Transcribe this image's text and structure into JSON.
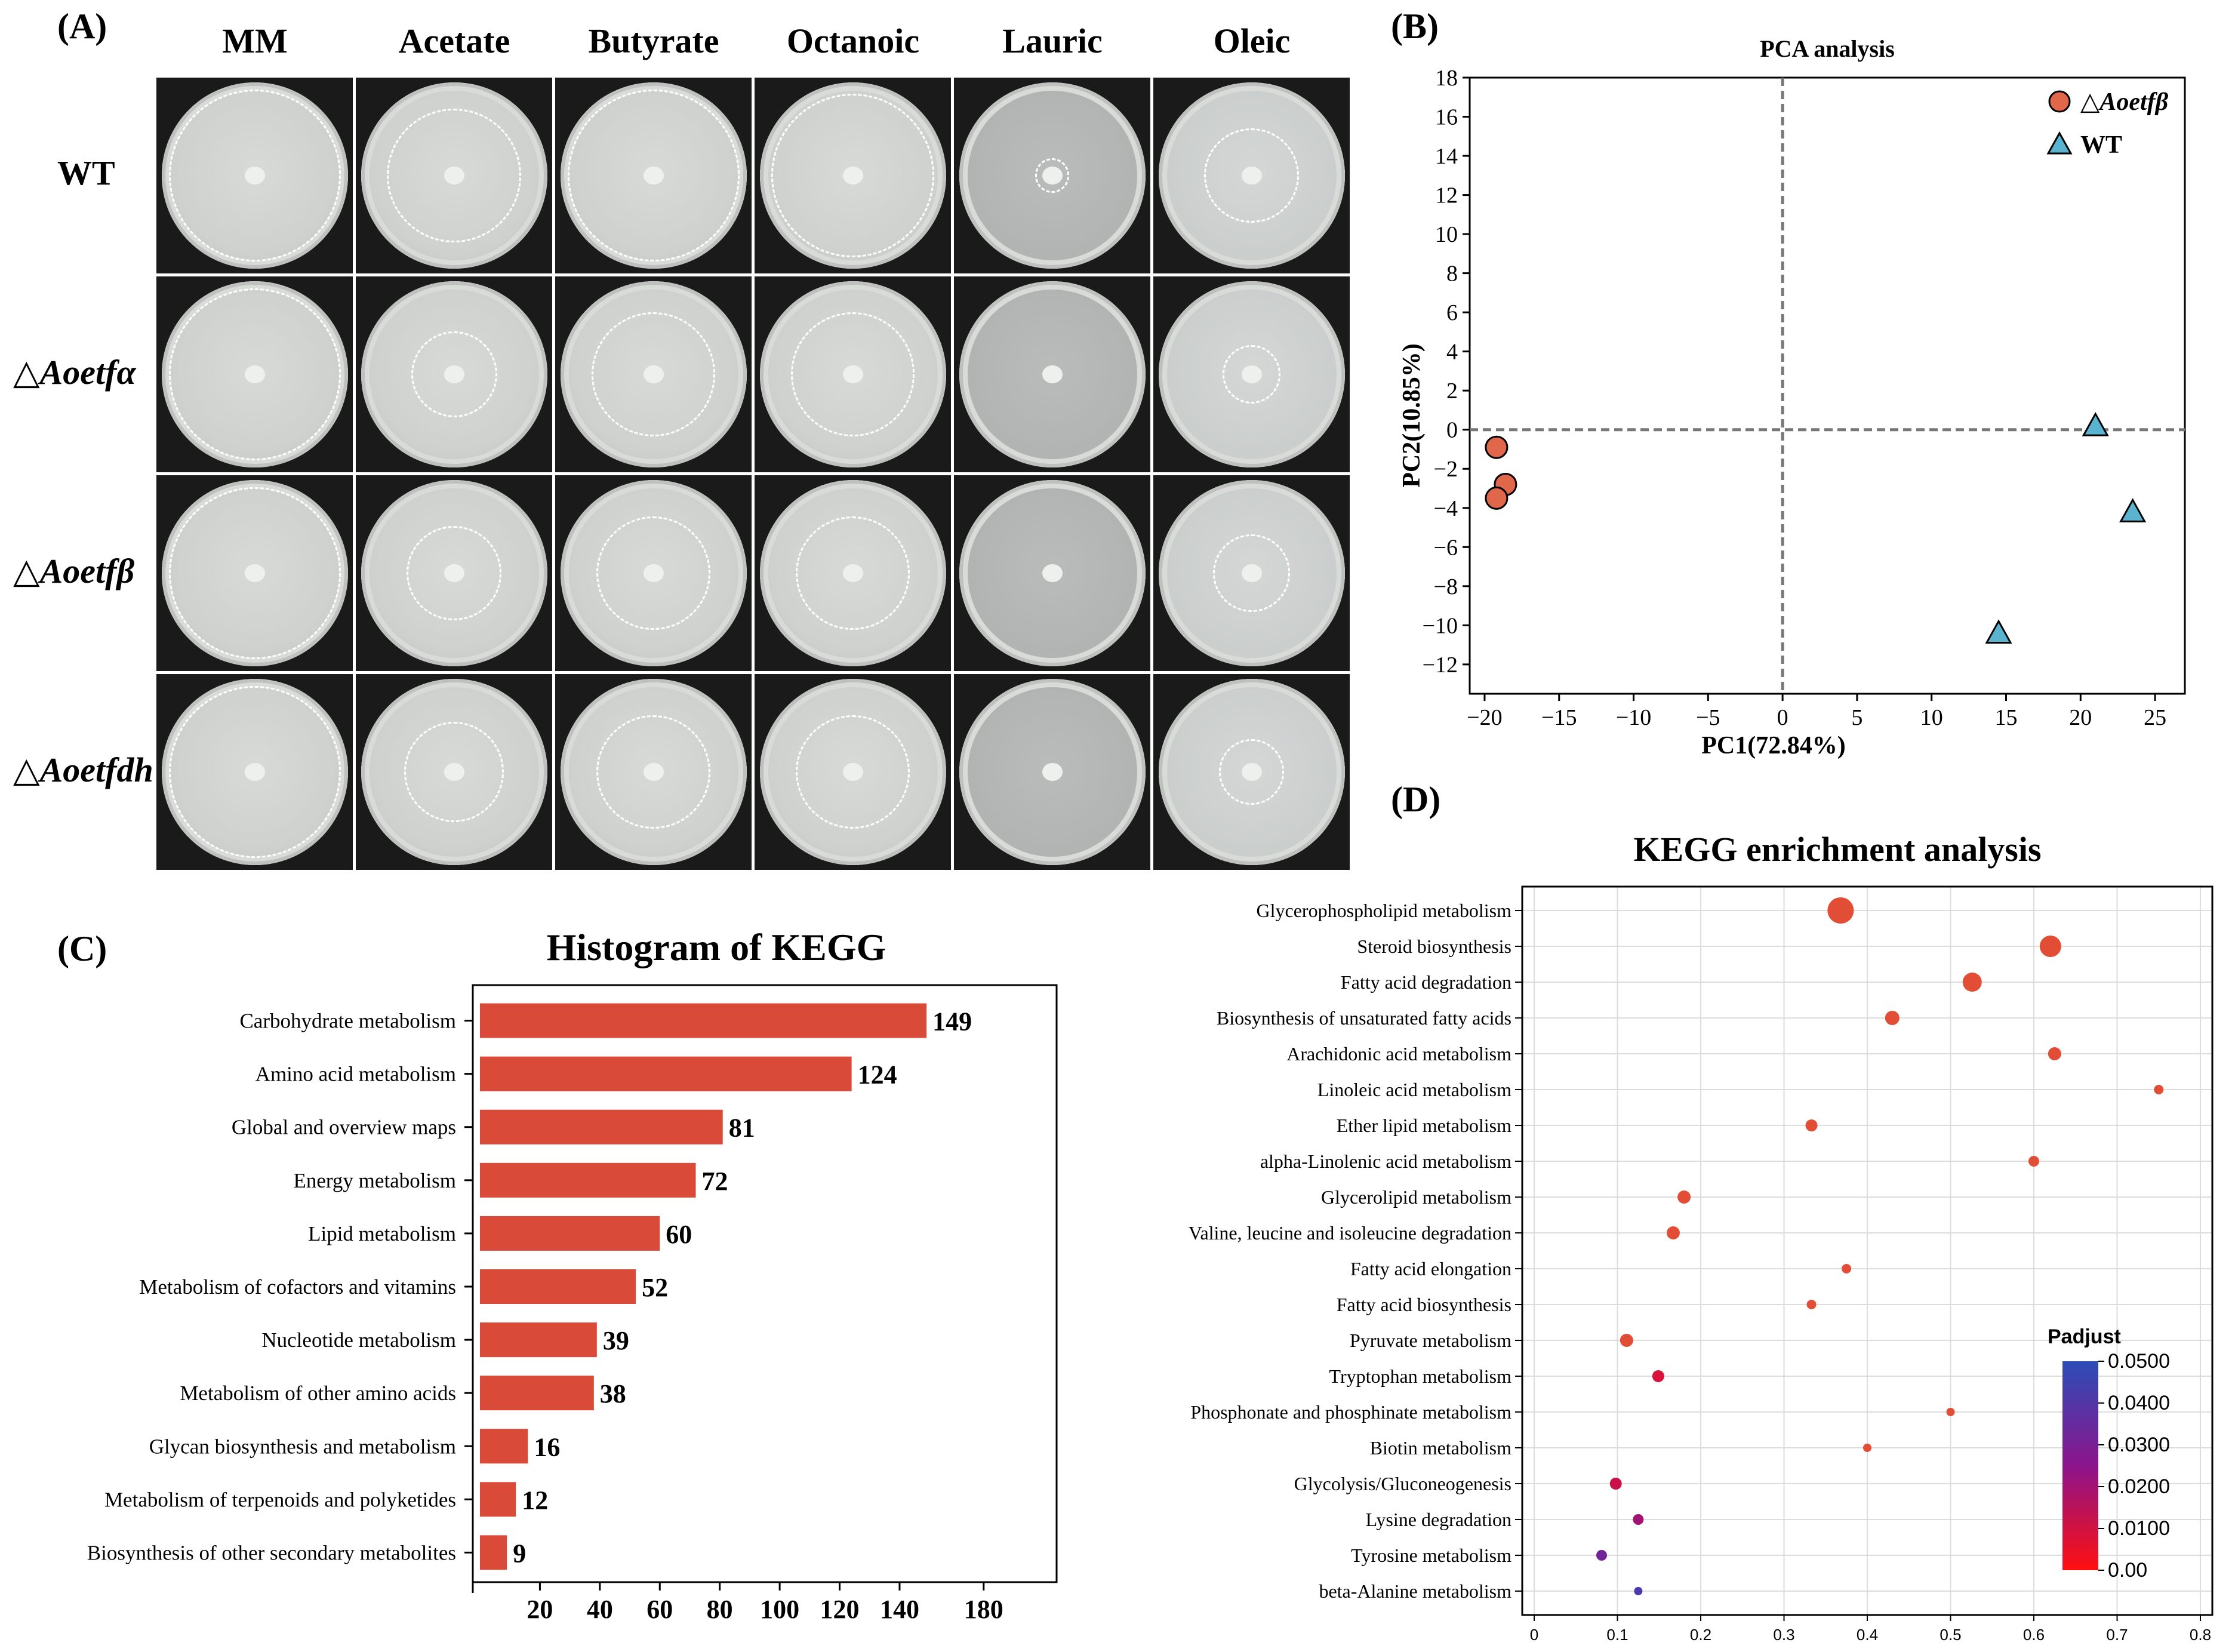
{
  "panel_labels": {
    "a": "(A)",
    "b": "(B)",
    "c": "(C)",
    "d": "(D)"
  },
  "panel_a": {
    "columns": [
      "MM",
      "Acetate",
      "Butyrate",
      "Octanoic",
      "Lauric",
      "Oleic"
    ],
    "rows": [
      {
        "prefix": "",
        "name": "WT"
      },
      {
        "prefix": "△",
        "name": "Aoetfα"
      },
      {
        "prefix": "△",
        "name": "Aoetfβ"
      },
      {
        "prefix": "△",
        "name": "Aoetfdh"
      }
    ],
    "colony_zone_fraction": [
      [
        1.0,
        0.78,
        1.0,
        0.95,
        0.2,
        0.55
      ],
      [
        1.0,
        0.5,
        0.72,
        0.72,
        0.1,
        0.34
      ],
      [
        1.0,
        0.55,
        0.66,
        0.66,
        0.08,
        0.45
      ],
      [
        1.0,
        0.58,
        0.66,
        0.66,
        0.08,
        0.38
      ]
    ]
  },
  "chart_data": [
    {
      "type": "scatter",
      "title": "PCA analysis",
      "xlabel": "PC1(72.84%)",
      "ylabel": "PC2(10.85%)",
      "xlim": [
        -21,
        27
      ],
      "ylim": [
        -13.5,
        18
      ],
      "xticks": [
        -20,
        -15,
        -10,
        -5,
        0,
        5,
        10,
        15,
        20,
        25
      ],
      "yticks": [
        -12,
        -10,
        -8,
        -6,
        -4,
        -2,
        0,
        2,
        4,
        6,
        8,
        10,
        12,
        14,
        16,
        18
      ],
      "legend_position": "top-right",
      "series": [
        {
          "name": "△Aoetfβ",
          "marker": "circle",
          "color": "#e0674a",
          "points": [
            [
              -19.2,
              -0.9
            ],
            [
              -18.6,
              -2.8
            ],
            [
              -19.2,
              -3.5
            ]
          ]
        },
        {
          "name": "WT",
          "marker": "triangle",
          "color": "#5ab4cf",
          "points": [
            [
              21.0,
              0.2
            ],
            [
              23.5,
              -4.2
            ],
            [
              14.5,
              -10.4
            ]
          ]
        }
      ]
    },
    {
      "type": "bar",
      "orientation": "horizontal",
      "title": "Histogram of KEGG",
      "color": "#d94a38",
      "xlim": [
        0,
        190
      ],
      "xticks": [
        20,
        40,
        60,
        80,
        100,
        120,
        140,
        180
      ],
      "categories": [
        "Carbohydrate metabolism",
        "Amino acid metabolism",
        "Global and overview maps",
        "Energy metabolism",
        "Lipid metabolism",
        "Metabolism of cofactors and vitamins",
        "Nucleotide metabolism",
        "Metabolism of other amino acids",
        "Glycan biosynthesis and metabolism",
        "Metabolism of terpenoids and polyketides",
        "Biosynthesis of other secondary metabolites"
      ],
      "values": [
        149,
        124,
        81,
        72,
        60,
        52,
        39,
        38,
        16,
        12,
        9
      ]
    },
    {
      "type": "scatter",
      "title": "KEGG enrichment analysis",
      "xlim": [
        0,
        0.8
      ],
      "xticks": [
        "0",
        "0.1",
        "0.2",
        "0.3",
        "0.4",
        "0.5",
        "0.6",
        "0.7",
        "0.8"
      ],
      "grid": true,
      "colorbar": {
        "title": "Padjust",
        "ticks": [
          "0.0500",
          "0.0400",
          "0.0300",
          "0.0200",
          "0.0100",
          "0.00"
        ],
        "low_color": "#ff1010",
        "high_color": "#2c4db8"
      },
      "categories": [
        "Glycerophospholipid metabolism",
        "Steroid biosynthesis",
        "Fatty acid degradation",
        "Biosynthesis of unsaturated fatty acids",
        "Arachidonic acid metabolism",
        "Linoleic acid metabolism",
        "Ether lipid metabolism",
        "alpha-Linolenic acid metabolism",
        "Glycerolipid metabolism",
        "Valine, leucine and isoleucine degradation",
        "Fatty acid elongation",
        "Fatty acid biosynthesis",
        "Pyruvate metabolism",
        "Tryptophan metabolism",
        "Phosphonate and phosphinate metabolism",
        "Biotin metabolism",
        "Glycolysis/Gluconeogenesis",
        "Lysine degradation",
        "Tyrosine metabolism",
        "beta-Alanine metabolism"
      ],
      "x": [
        0.368,
        0.62,
        0.526,
        0.43,
        0.625,
        0.75,
        0.333,
        0.6,
        0.18,
        0.167,
        0.375,
        0.333,
        0.111,
        0.149,
        0.5,
        0.4,
        0.098,
        0.125,
        0.081,
        0.125
      ],
      "size": [
        22,
        18,
        16,
        12,
        11,
        8,
        10,
        9,
        11,
        11,
        8,
        8,
        11,
        10,
        7,
        7,
        10,
        9,
        9,
        7
      ],
      "padjust": [
        0.001,
        0.001,
        0.001,
        0.002,
        0.002,
        0.003,
        0.002,
        0.002,
        0.004,
        0.004,
        0.004,
        0.004,
        0.006,
        0.008,
        0.004,
        0.005,
        0.012,
        0.02,
        0.032,
        0.042
      ]
    }
  ]
}
